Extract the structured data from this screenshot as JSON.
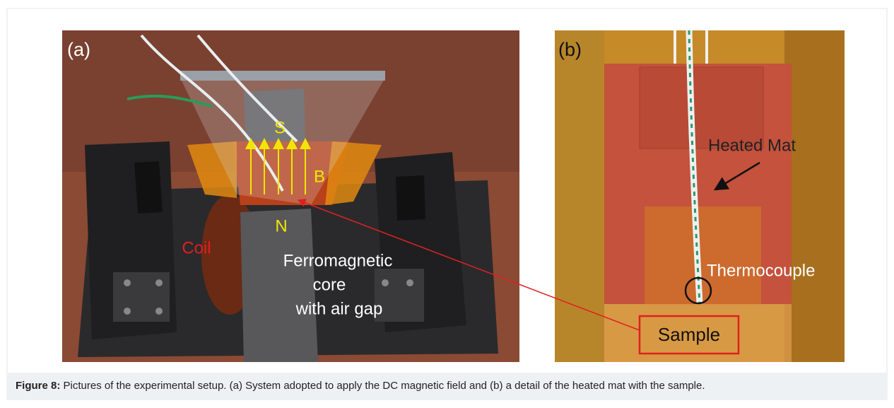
{
  "figure": {
    "panels": [
      {
        "label": "(a)",
        "annotations": {
          "south": "S",
          "field": "B",
          "north": "N",
          "coil": "Coil",
          "core": [
            "Ferromagnetic",
            "core",
            "with air gap"
          ]
        }
      },
      {
        "label": "(b)",
        "annotations": {
          "mat": "Heated Mat",
          "thermocouple": "Thermocouple",
          "sample": "Sample"
        }
      }
    ],
    "caption": {
      "label": "Figure 8:",
      "text": "Pictures of the experimental setup. (a) System adopted to apply the DC magnetic field and (b) a detail of the heated mat with the sample."
    }
  }
}
